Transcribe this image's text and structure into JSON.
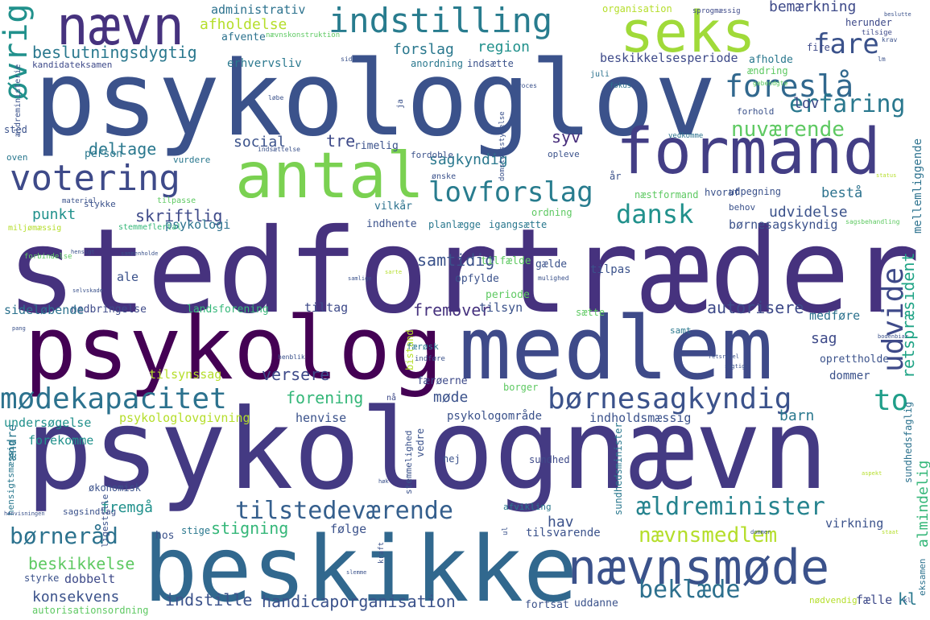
{
  "words": [
    {
      "text": "stedfortræder",
      "color": "#46327e"
    },
    {
      "text": "psykolognævn",
      "color": "#443a83"
    },
    {
      "text": "psykologlov",
      "color": "#3b528b"
    },
    {
      "text": "beskikke",
      "color": "#31688e"
    },
    {
      "text": "psykolog",
      "color": "#440154"
    },
    {
      "text": "medlem",
      "color": "#3e4a89"
    },
    {
      "text": "formand",
      "color": "#433e85"
    },
    {
      "text": "antal",
      "color": "#7ad151"
    },
    {
      "text": "seks",
      "color": "#a0da39"
    },
    {
      "text": "nævn",
      "color": "#46327e"
    },
    {
      "text": "nævnsmøde",
      "color": "#3b528b"
    },
    {
      "text": "indstilling",
      "color": "#287c8e"
    },
    {
      "text": "votering",
      "color": "#3e4a89"
    },
    {
      "text": "foreslå",
      "color": "#31688e"
    },
    {
      "text": "mødekapacitet",
      "color": "#2c728e"
    },
    {
      "text": "børnesagkyndig",
      "color": "#3b528b"
    },
    {
      "text": "lovforslag",
      "color": "#287c8e"
    },
    {
      "text": "fare",
      "color": "#3b528b"
    },
    {
      "text": "erfaring",
      "color": "#2a788e"
    },
    {
      "text": "tilstedeværende",
      "color": "#355f8d"
    },
    {
      "text": "ældreminister",
      "color": "#25838e"
    },
    {
      "text": "nævnsmedlem",
      "color": "#b5de2b"
    },
    {
      "text": "beklæde",
      "color": "#2d708e"
    },
    {
      "text": "dansk",
      "color": "#21918c"
    },
    {
      "text": "nuværende",
      "color": "#5ec962"
    },
    {
      "text": "udvide",
      "color": "#3e4a89"
    },
    {
      "text": "to",
      "color": "#1f9e89"
    },
    {
      "text": "øvrig",
      "color": "#21918c"
    },
    {
      "text": "børneråd",
      "color": "#2c728e"
    },
    {
      "text": "handicaporganisation",
      "color": "#3b528b"
    },
    {
      "text": "retspræsident",
      "color": "#20a486"
    },
    {
      "text": "beskikkelse",
      "color": "#5ec962"
    },
    {
      "text": "konsekvens",
      "color": "#3b528b"
    },
    {
      "text": "indstille",
      "color": "#3b528b"
    },
    {
      "text": "kl",
      "color": "#2a788e"
    },
    {
      "text": "stigning",
      "color": "#35b779"
    },
    {
      "text": "forening",
      "color": "#35b779"
    },
    {
      "text": "versere",
      "color": "#3e4a89"
    },
    {
      "text": "autorisere",
      "color": "#3e4a89"
    },
    {
      "text": "fremover",
      "color": "#46327e"
    },
    {
      "text": "skriftlig",
      "color": "#3e4a89"
    },
    {
      "text": "samtidig",
      "color": "#3b528b"
    },
    {
      "text": "sagkyndig",
      "color": "#2a788e"
    },
    {
      "text": "deltage",
      "color": "#2a788e"
    },
    {
      "text": "social",
      "color": "#3b528b"
    },
    {
      "text": "tre",
      "color": "#3e4a89"
    },
    {
      "text": "syv",
      "color": "#472d7b"
    },
    {
      "text": "afholdelse",
      "color": "#b5de2b"
    },
    {
      "text": "beslutningsdygtig",
      "color": "#2a788e"
    },
    {
      "text": "forslag",
      "color": "#2a788e"
    },
    {
      "text": "region",
      "color": "#21918c"
    },
    {
      "text": "administrativ",
      "color": "#2c728e"
    },
    {
      "text": "bemærkning",
      "color": "#3e4a89"
    },
    {
      "text": "beskikkelsesperiode",
      "color": "#3e4a89"
    },
    {
      "text": "lov",
      "color": "#3e4a89"
    },
    {
      "text": "fremgå",
      "color": "#21918c"
    },
    {
      "text": "hav",
      "color": "#3b528b"
    },
    {
      "text": "punkt",
      "color": "#21918c"
    },
    {
      "text": "sag",
      "color": "#3e4a89"
    },
    {
      "text": "barn",
      "color": "#2a788e"
    },
    {
      "text": "møde",
      "color": "#3b528b"
    },
    {
      "text": "almindelig",
      "color": "#35b779"
    },
    {
      "text": "udvidelse",
      "color": "#3b528b"
    },
    {
      "text": "bestå",
      "color": "#2c728e"
    },
    {
      "text": "mellemliggende",
      "color": "#2c728e"
    },
    {
      "text": "dobbelt",
      "color": "#3e4a89"
    },
    {
      "text": "ændre",
      "color": "#2a788e"
    },
    {
      "text": "tilsynssag",
      "color": "#b5de2b"
    },
    {
      "text": "psykologlovgivning",
      "color": "#b5de2b"
    },
    {
      "text": "psykologi",
      "color": "#2c728e"
    },
    {
      "text": "landsforening",
      "color": "#35b779"
    },
    {
      "text": "nedbringelse",
      "color": "#3e4a89"
    },
    {
      "text": "sideløbende",
      "color": "#2c728e"
    },
    {
      "text": "undersøgelse",
      "color": "#21918c"
    },
    {
      "text": "forekomme",
      "color": "#21918c"
    },
    {
      "text": "henvise",
      "color": "#3b528b"
    },
    {
      "text": "indholdsmæssig",
      "color": "#3b528b"
    },
    {
      "text": "psykologområde",
      "color": "#3b528b"
    },
    {
      "text": "tiltag",
      "color": "#3e4a89"
    },
    {
      "text": "tilsyn",
      "color": "#3b528b"
    },
    {
      "text": "ale",
      "color": "#3b528b"
    },
    {
      "text": "periode",
      "color": "#5ec962"
    },
    {
      "text": "opfylde",
      "color": "#3b528b"
    },
    {
      "text": "tilfælde",
      "color": "#5ec962"
    },
    {
      "text": "tilpas",
      "color": "#3b528b"
    },
    {
      "text": "gælde",
      "color": "#3b528b"
    },
    {
      "text": "medføre",
      "color": "#2c728e"
    },
    {
      "text": "oprettholde",
      "color": "#3b528b"
    },
    {
      "text": "dommer",
      "color": "#3b528b"
    },
    {
      "text": "fælle",
      "color": "#3e4a89"
    },
    {
      "text": "børnesagskyndig",
      "color": "#3b528b"
    },
    {
      "text": "nødvendig",
      "color": "#b5de2b"
    },
    {
      "text": "fortsat",
      "color": "#3b528b"
    },
    {
      "text": "uddanne",
      "color": "#3b528b"
    },
    {
      "text": "tilsvarende",
      "color": "#3b528b"
    },
    {
      "text": "følge",
      "color": "#3b528b"
    },
    {
      "text": "virkning",
      "color": "#3b528b"
    },
    {
      "text": "autorisationsordning",
      "color": "#5ec962"
    },
    {
      "text": "styrke",
      "color": "#3b528b"
    },
    {
      "text": "økonomisk",
      "color": "#3b528b"
    },
    {
      "text": "stige",
      "color": "#2a788e"
    },
    {
      "text": "hos",
      "color": "#3b528b"
    },
    {
      "text": "sundhed",
      "color": "#3e4a89"
    },
    {
      "text": "vedre",
      "color": "#3b528b"
    },
    {
      "text": "nej",
      "color": "#3b528b"
    },
    {
      "text": "færøerne",
      "color": "#3e4a89"
    },
    {
      "text": "borger",
      "color": "#5ec962"
    },
    {
      "text": "sundhedsminister",
      "color": "#2a788e"
    },
    {
      "text": "sundhedsfaglig",
      "color": "#2c728e"
    },
    {
      "text": "eksamen",
      "color": "#2c728e"
    },
    {
      "text": "afvente",
      "color": "#2c728e"
    },
    {
      "text": "nævnskonstruktion",
      "color": "#5ec962"
    },
    {
      "text": "erhvervsliv",
      "color": "#2a788e"
    },
    {
      "text": "kandidateksamen",
      "color": "#3e4a89"
    },
    {
      "text": "anordning",
      "color": "#2a788e"
    },
    {
      "text": "indsætte",
      "color": "#3b528b"
    },
    {
      "text": "organisation",
      "color": "#b5de2b"
    },
    {
      "text": "herunder",
      "color": "#3e4a89"
    },
    {
      "text": "afholde",
      "color": "#2a788e"
    },
    {
      "text": "ændring",
      "color": "#5ec962"
    },
    {
      "text": "forhold",
      "color": "#3b528b"
    },
    {
      "text": "person",
      "color": "#2a788e"
    },
    {
      "text": "vurdere",
      "color": "#2a788e"
    },
    {
      "text": "rimelig",
      "color": "#3b528b"
    },
    {
      "text": "fordoble",
      "color": "#3b528b"
    },
    {
      "text": "opleve",
      "color": "#3b528b"
    },
    {
      "text": "udpegning",
      "color": "#3b528b"
    },
    {
      "text": "hvoraf",
      "color": "#3b528b"
    },
    {
      "text": "næstformand",
      "color": "#5ec962"
    },
    {
      "text": "behov",
      "color": "#3b528b"
    },
    {
      "text": "vilkår",
      "color": "#2c728e"
    },
    {
      "text": "indhente",
      "color": "#3b528b"
    },
    {
      "text": "planlægge",
      "color": "#2a788e"
    },
    {
      "text": "igangsætte",
      "color": "#2a788e"
    },
    {
      "text": "ordning",
      "color": "#5ec962"
    },
    {
      "text": "sted",
      "color": "#3b528b"
    },
    {
      "text": "oven",
      "color": "#2a788e"
    },
    {
      "text": "ældreministerie",
      "color": "#3b528b"
    },
    {
      "text": "stykke",
      "color": "#3b528b"
    },
    {
      "text": "fire",
      "color": "#3e4a89"
    },
    {
      "text": "år",
      "color": "#3b528b"
    },
    {
      "text": "sætte",
      "color": "#5ec962"
    },
    {
      "text": "samt",
      "color": "#2a788e"
    },
    {
      "text": "bistand",
      "color": "#b5de2b"
    },
    {
      "text": "hensigtsmæssig",
      "color": "#2a788e"
    },
    {
      "text": "ligestille",
      "color": "#3b528b"
    },
    {
      "text": "sagsindtag",
      "color": "#3b528b"
    },
    {
      "text": "afvikling",
      "color": "#2a788e"
    },
    {
      "text": "stemmelighed",
      "color": "#3b528b"
    },
    {
      "text": "vedkomme",
      "color": "#2c728e"
    },
    {
      "text": "domstolsstyrelse",
      "color": "#3b528b"
    },
    {
      "text": "tilsige",
      "color": "#3e4a89"
    },
    {
      "text": "sprogmæssig",
      "color": "#3e4a89"
    },
    {
      "text": "juli",
      "color": "#2c728e"
    },
    {
      "text": "fokus",
      "color": "#2c728e"
    },
    {
      "text": "ønske",
      "color": "#3b528b"
    },
    {
      "text": "materiel",
      "color": "#3b528b"
    },
    {
      "text": "stemmeflertal",
      "color": "#35b779"
    },
    {
      "text": "miljømæssig",
      "color": "#b5de2b"
    },
    {
      "text": "tilpasse",
      "color": "#5ec962"
    },
    {
      "text": "forbindelse",
      "color": "#5ec962"
    },
    {
      "text": "kraft",
      "color": "#3b528b"
    },
    {
      "text": "nå",
      "color": "#3e4a89"
    },
    {
      "text": "ja",
      "color": "#3b528b"
    },
    {
      "text": "løbe",
      "color": "#3b528b"
    },
    {
      "text": "proces",
      "color": "#3b528b"
    },
    {
      "text": "mulighed",
      "color": "#3b528b"
    },
    {
      "text": "krav",
      "color": "#3b528b"
    },
    {
      "text": "side",
      "color": "#3b528b"
    },
    {
      "text": "indsættelse",
      "color": "#3b528b"
    },
    {
      "text": "færøsk",
      "color": "#2a788e"
    },
    {
      "text": "indføre",
      "color": "#3b528b"
    },
    {
      "text": "henblik",
      "color": "#3b528b"
    },
    {
      "text": "sagsbehandling",
      "color": "#5ec962"
    },
    {
      "text": "gebendgte",
      "color": "#5ec962"
    },
    {
      "text": "lm",
      "color": "#3b528b"
    },
    {
      "text": "beslutte",
      "color": "#3b528b"
    },
    {
      "text": "status",
      "color": "#b5de2b"
    },
    {
      "text": "hensigt",
      "color": "#3b528b"
    },
    {
      "text": "sammenholde",
      "color": "#3b528b"
    },
    {
      "text": "selvskade",
      "color": "#3b528b"
    },
    {
      "text": "samlige",
      "color": "#3b528b"
    },
    {
      "text": "sarte",
      "color": "#b5de2b"
    },
    {
      "text": "retsregel",
      "color": "#3b528b"
    },
    {
      "text": "sagtig",
      "color": "#3b528b"
    },
    {
      "text": "pang",
      "color": "#3b528b"
    },
    {
      "text": "bodenbiar",
      "color": "#3b528b"
    },
    {
      "text": "høk",
      "color": "#3b528b"
    },
    {
      "text": "slemme",
      "color": "#3b528b"
    },
    {
      "text": "ul",
      "color": "#3b528b"
    },
    {
      "text": "kl",
      "color": "#3b528b"
    },
    {
      "text": "henvisningen",
      "color": "#3b528b"
    },
    {
      "text": "aspekt",
      "color": "#b5de2b"
    },
    {
      "text": "staat",
      "color": "#b5de2b"
    },
    {
      "text": "dommer",
      "color": "#3b528b"
    }
  ]
}
